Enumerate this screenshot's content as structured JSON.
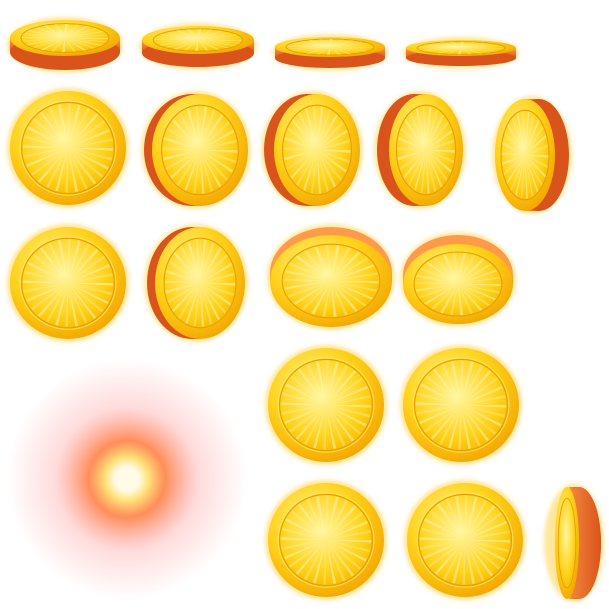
{
  "sheet": {
    "background": "#ffffff",
    "colors": {
      "face_light": "#fff7a0",
      "face_mid": "#ffd21a",
      "face_dark": "#f2a400",
      "rim_highlight": "#ffe86a",
      "edge_light": "#ff9a4a",
      "edge_dark": "#d9541a",
      "outer_glow": "#ffcf3a",
      "ray_light": "#fff4b0",
      "glow_core": "#fffbe6",
      "glow_inner": "#ffe27a",
      "glow_mid": "#ff7a3c",
      "glow_outer": "#ff9a9a"
    },
    "sprites": [
      {
        "kind": "coin",
        "view": "flat-top",
        "icon": "coin-flat-icon"
      },
      {
        "kind": "coin",
        "view": "flat-top",
        "icon": "coin-flat-icon"
      },
      {
        "kind": "coin",
        "view": "flat-top",
        "icon": "coin-flat-icon"
      },
      {
        "kind": "coin",
        "view": "flat-top",
        "icon": "coin-flat-icon"
      },
      {
        "kind": "coin",
        "view": "front",
        "icon": "coin-front-icon"
      },
      {
        "kind": "coin",
        "view": "turned",
        "icon": "coin-turned-icon"
      },
      {
        "kind": "coin",
        "view": "turned",
        "icon": "coin-turned-icon"
      },
      {
        "kind": "coin",
        "view": "turned",
        "icon": "coin-turned-icon"
      },
      {
        "kind": "coin",
        "view": "turned",
        "icon": "coin-turned-icon"
      },
      {
        "kind": "coin",
        "view": "front",
        "icon": "coin-front-icon"
      },
      {
        "kind": "coin",
        "view": "turned",
        "icon": "coin-turned-icon"
      },
      {
        "kind": "coin",
        "view": "tilted",
        "icon": "coin-tilted-icon"
      },
      {
        "kind": "coin",
        "view": "tilted",
        "icon": "coin-tilted-icon"
      },
      {
        "kind": "glow",
        "view": "sparkle",
        "icon": "glow-burst-icon"
      },
      {
        "kind": "coin",
        "view": "front",
        "icon": "coin-front-icon"
      },
      {
        "kind": "coin",
        "view": "front",
        "icon": "coin-front-icon"
      },
      {
        "kind": "coin",
        "view": "front",
        "icon": "coin-front-icon"
      },
      {
        "kind": "coin",
        "view": "front",
        "icon": "coin-front-icon"
      },
      {
        "kind": "coin",
        "view": "edge",
        "icon": "coin-edge-icon"
      }
    ]
  }
}
